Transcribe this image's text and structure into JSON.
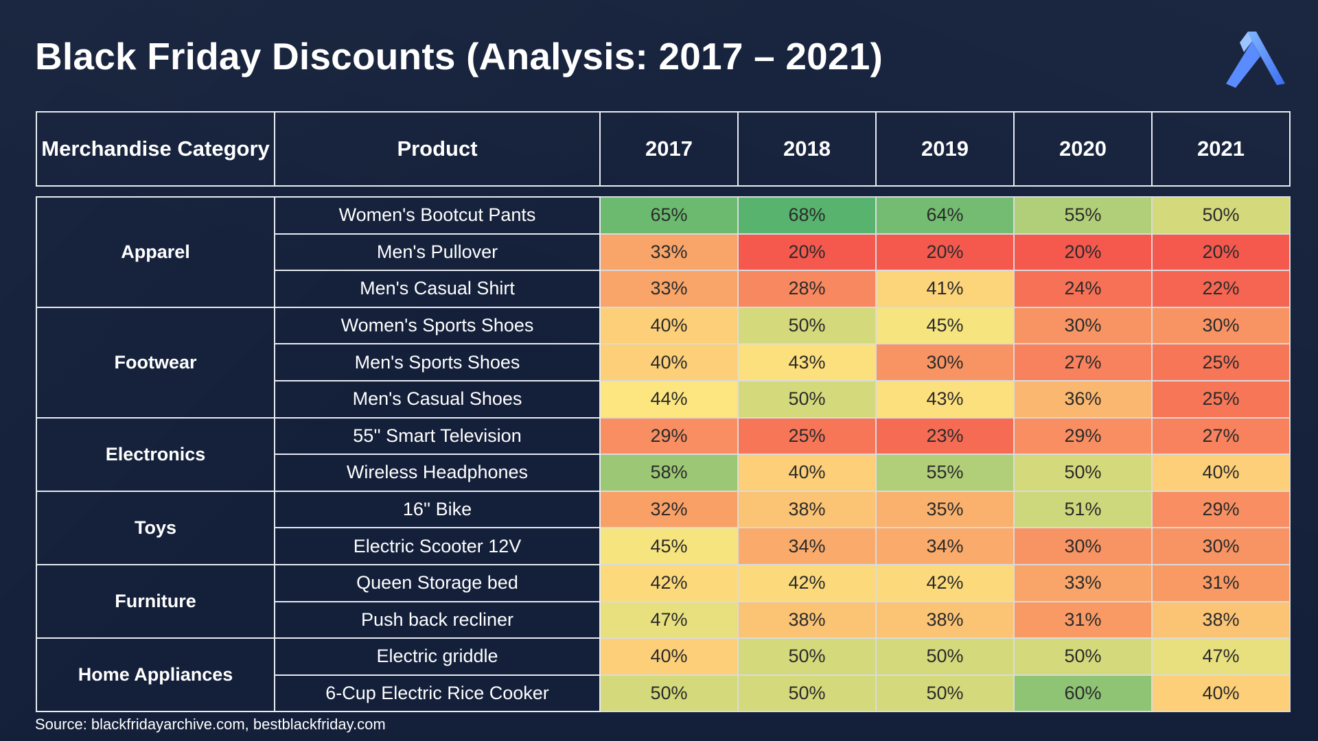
{
  "title": "Black Friday Discounts (Analysis: 2017 – 2021)",
  "source": "Source: blackfridayarchive.com, bestblackfriday.com",
  "logo_icon": "brand-logo-icon",
  "chart_data": {
    "type": "table",
    "title": "Black Friday Discounts (Analysis: 2017 – 2021)",
    "columns": [
      "Merchandise Category",
      "Product",
      "2017",
      "2018",
      "2019",
      "2020",
      "2021"
    ],
    "years": [
      "2017",
      "2018",
      "2019",
      "2020",
      "2021"
    ],
    "color_scale": {
      "low": "#f5594e",
      "mid": "#fde680",
      "high": "#57b36e",
      "min": 20,
      "max": 68
    },
    "groups": [
      {
        "category": "Apparel",
        "rows": [
          {
            "product": "Women's Bootcut Pants",
            "values": [
              65,
              68,
              64,
              55,
              50
            ]
          },
          {
            "product": "Men's Pullover",
            "values": [
              33,
              20,
              20,
              20,
              20
            ]
          },
          {
            "product": "Men's Casual Shirt",
            "values": [
              33,
              28,
              41,
              24,
              22
            ]
          }
        ]
      },
      {
        "category": "Footwear",
        "rows": [
          {
            "product": "Women's Sports Shoes",
            "values": [
              40,
              50,
              45,
              30,
              30
            ]
          },
          {
            "product": "Men's Sports Shoes",
            "values": [
              40,
              43,
              30,
              27,
              25
            ]
          },
          {
            "product": "Men's Casual Shoes",
            "values": [
              44,
              50,
              43,
              36,
              25
            ]
          }
        ]
      },
      {
        "category": "Electronics",
        "rows": [
          {
            "product": "55'' Smart Television",
            "values": [
              29,
              25,
              23,
              29,
              27
            ]
          },
          {
            "product": "Wireless Headphones",
            "values": [
              58,
              40,
              55,
              50,
              40
            ]
          }
        ]
      },
      {
        "category": "Toys",
        "rows": [
          {
            "product": "16'' Bike",
            "values": [
              32,
              38,
              35,
              51,
              29
            ]
          },
          {
            "product": "Electric Scooter 12V",
            "values": [
              45,
              34,
              34,
              30,
              30
            ]
          }
        ]
      },
      {
        "category": "Furniture",
        "rows": [
          {
            "product": "Queen Storage bed",
            "values": [
              42,
              42,
              42,
              33,
              31
            ]
          },
          {
            "product": "Push back recliner",
            "values": [
              47,
              38,
              38,
              31,
              38
            ]
          }
        ]
      },
      {
        "category": "Home Appliances",
        "rows": [
          {
            "product": "Electric griddle",
            "values": [
              40,
              50,
              50,
              50,
              47
            ]
          },
          {
            "product": "6-Cup Electric Rice Cooker",
            "values": [
              50,
              50,
              50,
              60,
              40
            ]
          }
        ]
      }
    ]
  }
}
